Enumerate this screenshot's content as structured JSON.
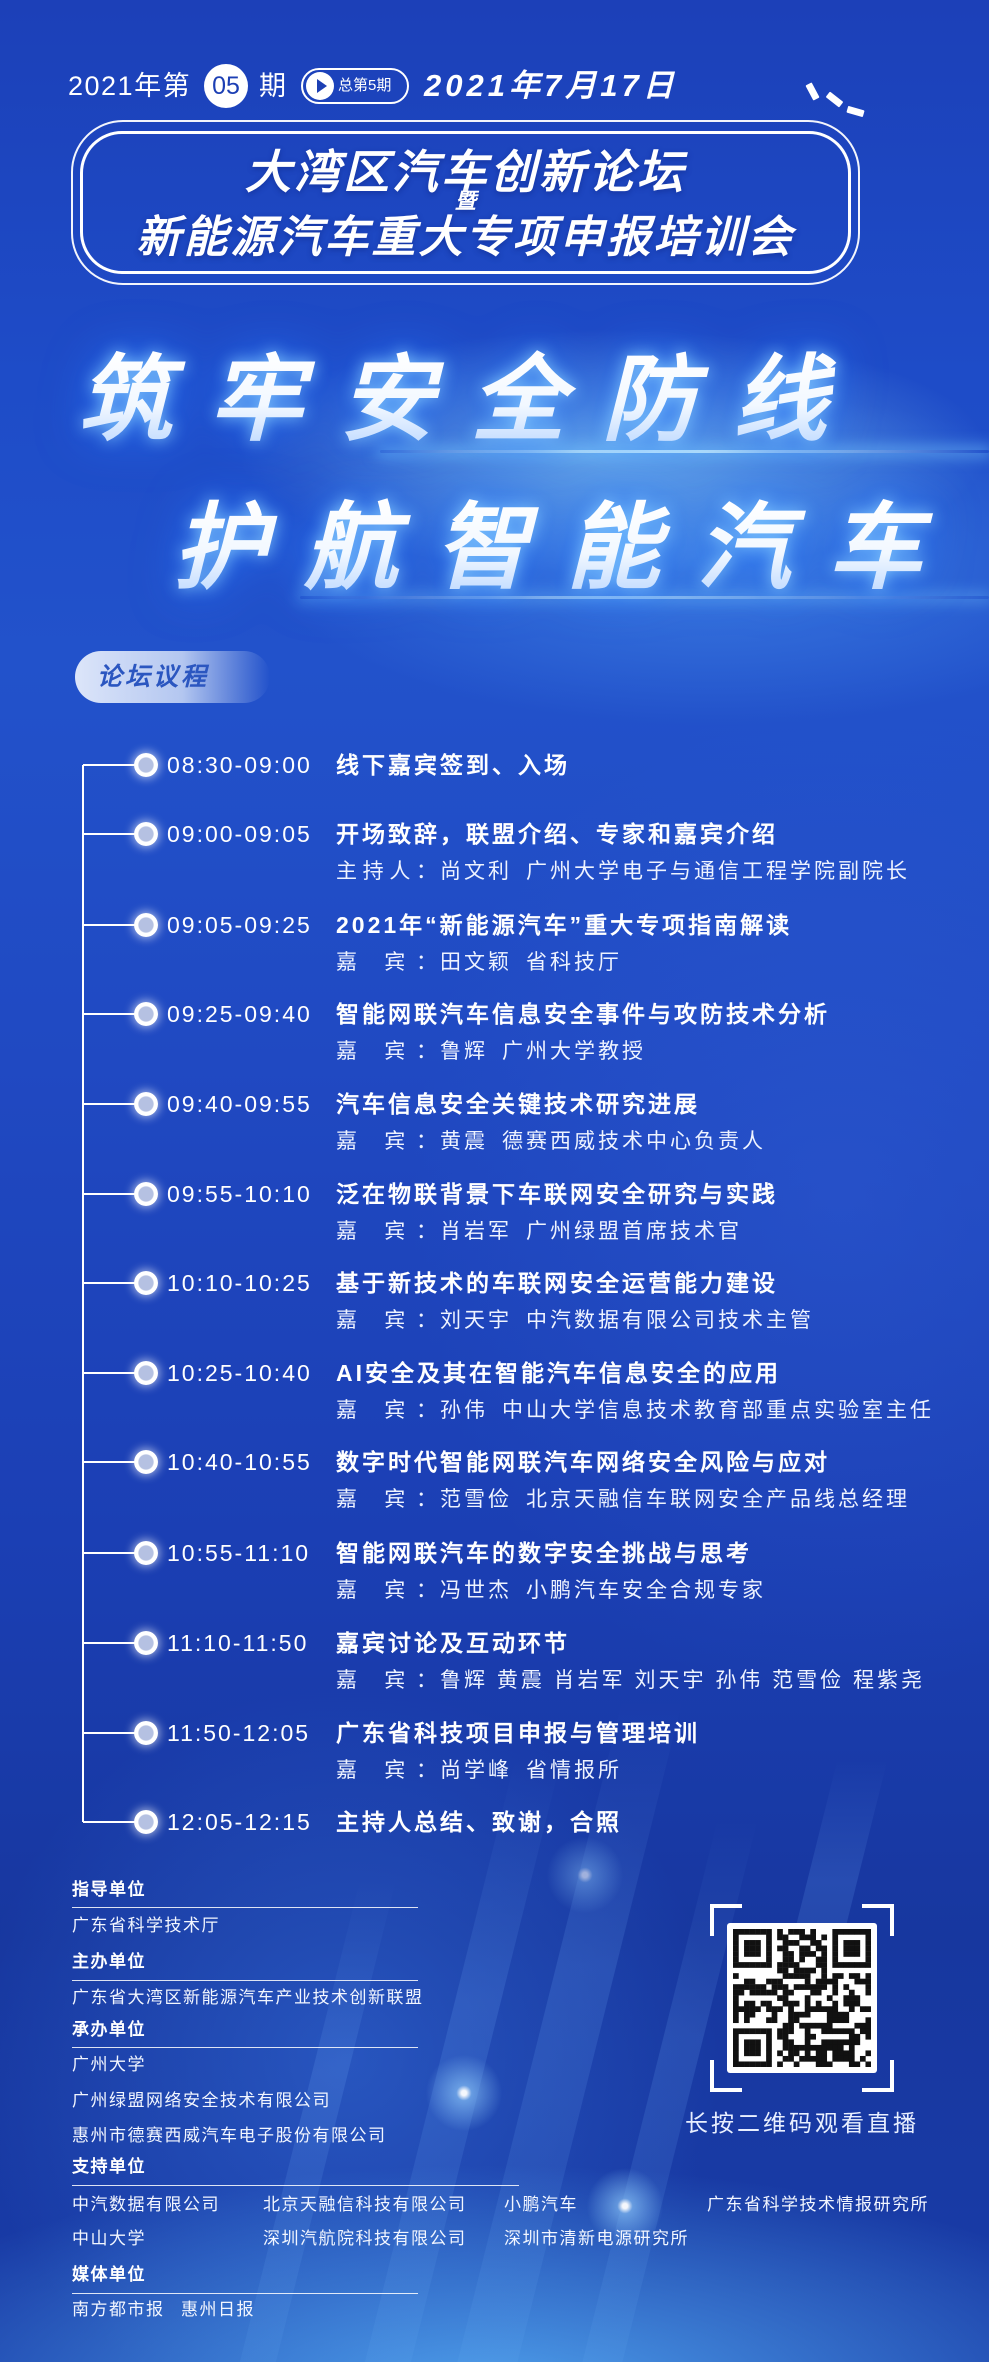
{
  "header": {
    "issue_prefix": "2021年第",
    "issue_number": "05",
    "issue_suffix": "期",
    "total_issue": "总第5期",
    "date": "2021年7月17日"
  },
  "event_title": {
    "line1": "大湾区汽车创新论坛",
    "connector": "暨",
    "line2": "新能源汽车重大专项申报培训会"
  },
  "slogan": {
    "line1": "筑牢安全防线",
    "line2": "护航智能汽车"
  },
  "agenda": {
    "heading": "论坛议程",
    "items": [
      {
        "time": "08:30-09:00",
        "topic": "线下嘉宾签到、入场"
      },
      {
        "time": "09:00-09:05",
        "topic": "开场致辞，联盟介绍、专家和嘉宾介绍",
        "role": "主持人：",
        "person": "尚文利",
        "org": "广州大学电子与通信工程学院副院长"
      },
      {
        "time": "09:05-09:25",
        "topic": "2021年“新能源汽车”重大专项指南解读",
        "role": "嘉 宾：",
        "person": "田文颖",
        "org": "省科技厅"
      },
      {
        "time": "09:25-09:40",
        "topic": "智能网联汽车信息安全事件与攻防技术分析",
        "role": "嘉 宾：",
        "person": "鲁辉",
        "org": "广州大学教授"
      },
      {
        "time": "09:40-09:55",
        "topic": "汽车信息安全关键技术研究进展",
        "role": "嘉 宾：",
        "person": "黄震",
        "org": "德赛西威技术中心负责人"
      },
      {
        "time": "09:55-10:10",
        "topic": "泛在物联背景下车联网安全研究与实践",
        "role": "嘉 宾：",
        "person": "肖岩军",
        "org": "广州绿盟首席技术官"
      },
      {
        "time": "10:10-10:25",
        "topic": "基于新技术的车联网安全运营能力建设",
        "role": "嘉 宾：",
        "person": "刘天宇",
        "org": "中汽数据有限公司技术主管"
      },
      {
        "time": "10:25-10:40",
        "topic": "AI安全及其在智能汽车信息安全的应用",
        "role": "嘉 宾：",
        "person": "孙伟",
        "org": "中山大学信息技术教育部重点实验室主任"
      },
      {
        "time": "10:40-10:55",
        "topic": "数字时代智能网联汽车网络安全风险与应对",
        "role": "嘉 宾：",
        "person": "范雪俭",
        "org": "北京天融信车联网安全产品线总经理"
      },
      {
        "time": "10:55-11:10",
        "topic": "智能网联汽车的数字安全挑战与思考",
        "role": "嘉 宾：",
        "person": "冯世杰",
        "org": "小鹏汽车安全合规专家"
      },
      {
        "time": "11:10-11:50",
        "topic": "嘉宾讨论及互动环节",
        "role": "嘉 宾：",
        "person": "鲁辉 黄震 肖岩军 刘天宇 孙伟 范雪俭 程紫尧"
      },
      {
        "time": "11:50-12:05",
        "topic": "广东省科技项目申报与管理培训",
        "role": "嘉 宾：",
        "person": "尚学峰",
        "org": "省情报所"
      },
      {
        "time": "12:05-12:15",
        "topic": "主持人总结、致谢，合照"
      }
    ]
  },
  "organizers": {
    "guide": {
      "label": "指导单位",
      "items": [
        "广东省科学技术厅"
      ]
    },
    "host": {
      "label": "主办单位",
      "items": [
        "广东省大湾区新能源汽车产业技术创新联盟"
      ]
    },
    "undertaker": {
      "label": "承办单位",
      "items": [
        "广州大学",
        "广州绿盟网络安全技术有限公司",
        "惠州市德赛西威汽车电子股份有限公司"
      ]
    },
    "support": {
      "label": "支持单位",
      "items": [
        "中汽数据有限公司",
        "北京天融信科技有限公司",
        "小鹏汽车",
        "广东省科学技术情报研究所",
        "中山大学",
        "深圳汽航院科技有限公司",
        "深圳市清新电源研究所"
      ]
    },
    "media": {
      "label": "媒体单位",
      "items": [
        "南方都市报",
        "惠州日报"
      ]
    }
  },
  "qr": {
    "caption": "长按二维码观看直播"
  },
  "icons": {
    "badge_icon": "play-icon",
    "qr_icon": "qr-code"
  },
  "colors": {
    "background_top": "#1c40b8",
    "background_bottom": "#17379f",
    "tab_text": "#2b56c0",
    "text": "#ffffff"
  }
}
